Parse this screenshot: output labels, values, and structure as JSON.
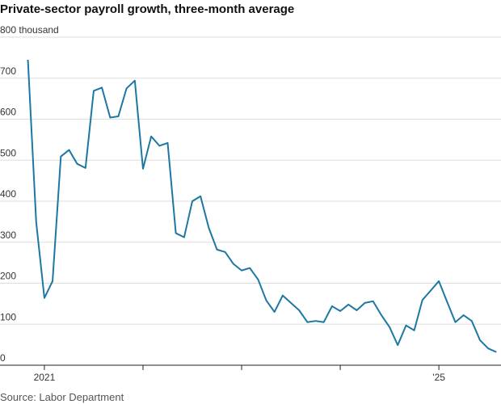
{
  "chart_data": {
    "type": "line",
    "title": "Private-sector payroll growth, three-month average",
    "source": "Source: Labor Department",
    "x": [
      2020.833,
      2020.917,
      2021,
      2021.083,
      2021.167,
      2021.25,
      2021.333,
      2021.417,
      2021.5,
      2021.583,
      2021.667,
      2021.75,
      2021.833,
      2021.917,
      2022,
      2022.083,
      2022.167,
      2022.25,
      2022.333,
      2022.417,
      2022.5,
      2022.583,
      2022.667,
      2022.75,
      2022.833,
      2022.917,
      2023,
      2023.083,
      2023.167,
      2023.25,
      2023.333,
      2023.417,
      2023.5,
      2023.583,
      2023.667,
      2023.75,
      2023.833,
      2023.917,
      2024,
      2024.083,
      2024.167,
      2024.25,
      2024.333,
      2024.417,
      2024.5,
      2024.583,
      2024.667,
      2024.75,
      2024.833,
      2024.917,
      2025,
      2025.083,
      2025.167,
      2025.25,
      2025.333,
      2025.417,
      2025.5,
      2025.583
    ],
    "series": [
      {
        "color": "#1c78a3",
        "values": [
          745,
          349,
          164,
          205,
          509,
          525,
          491,
          481,
          669,
          677,
          604,
          607,
          675,
          694,
          479,
          558,
          535,
          542,
          322,
          312,
          400,
          412,
          335,
          282,
          276,
          247,
          231,
          237,
          209,
          158,
          130,
          170,
          152,
          134,
          105,
          108,
          105,
          144,
          132,
          148,
          134,
          152,
          156,
          122,
          93,
          49,
          97,
          85,
          159,
          182,
          205,
          155,
          105,
          122,
          108,
          61,
          41,
          32
        ]
      }
    ],
    "xlim": [
      2020.55,
      2025.63
    ],
    "xticks": [
      2021,
      {
        "value": 2022,
        "label": null
      },
      {
        "value": 2023,
        "label": null
      },
      {
        "value": 2024,
        "label": null
      },
      {
        "value": 2025,
        "label": "'25"
      }
    ],
    "ylim": [
      0,
      800
    ],
    "yticks": [
      0,
      100,
      200,
      300,
      400,
      500,
      600,
      700,
      {
        "value": 800,
        "label": "800 thousand"
      }
    ],
    "grid": true
  }
}
